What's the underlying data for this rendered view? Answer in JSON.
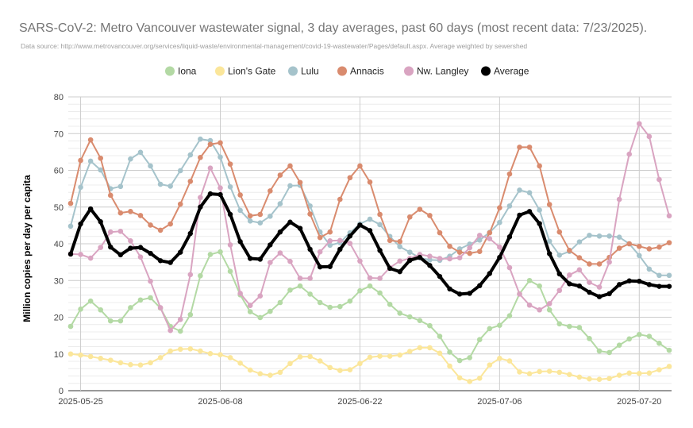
{
  "chart_data": {
    "type": "line",
    "title": "SARS-CoV-2: Metro Vancouver wastewater signal, 3 day averages, past 60 days (most recent data: 7/23/2025).",
    "subtitle": "Data source: http://www.metrovancouver.org/services/liquid-waste/environmental-management/covid-19-wastewater/Pages/default.aspx. Average weighted by sewershed",
    "ylabel": "Million copies per day per capita",
    "xlabel": "",
    "ylim": [
      0,
      80
    ],
    "yticks": [
      "0",
      "10",
      "20",
      "30",
      "40",
      "50",
      "60",
      "70",
      "80"
    ],
    "xticks": [
      {
        "index": 1,
        "label": "2025-05-25"
      },
      {
        "index": 15,
        "label": "2025-06-08"
      },
      {
        "index": 29,
        "label": "2025-06-22"
      },
      {
        "index": 43,
        "label": "2025-07-06"
      },
      {
        "index": 57,
        "label": "2025-07-20"
      }
    ],
    "x_start": "2025-05-24",
    "x_end": "2025-07-23",
    "grid": true,
    "legend_position": "top",
    "series": [
      {
        "name": "Iona",
        "color": "#b3d9a4",
        "bold": false,
        "values": [
          17.5,
          22.2,
          24.4,
          22.0,
          19.0,
          19.0,
          22.6,
          24.7,
          25.3,
          22.5,
          17.5,
          16.2,
          20.7,
          31.3,
          37.1,
          37.8,
          32.5,
          26.1,
          21.5,
          19.9,
          21.6,
          24.0,
          27.4,
          28.5,
          26.3,
          24.0,
          22.7,
          22.9,
          24.4,
          27.2,
          28.5,
          26.6,
          23.5,
          21.1,
          20.1,
          19.1,
          17.7,
          14.8,
          10.5,
          8.2,
          9.0,
          13.9,
          16.9,
          17.8,
          20.4,
          26.4,
          30.0,
          28.5,
          22.0,
          18.2,
          17.5,
          17.2,
          14.2,
          10.8,
          10.4,
          12.4,
          14.1,
          15.3,
          14.8,
          12.9,
          11.0
        ]
      },
      {
        "name": "Lion's Gate",
        "color": "#fbe69a",
        "bold": false,
        "values": [
          10.0,
          9.7,
          9.3,
          8.8,
          8.3,
          7.6,
          7.1,
          7.0,
          7.6,
          9.0,
          10.8,
          11.3,
          11.4,
          10.8,
          10.1,
          9.8,
          9.0,
          7.5,
          5.6,
          4.6,
          4.2,
          5.0,
          7.4,
          9.2,
          9.3,
          8.1,
          6.3,
          5.5,
          5.7,
          7.4,
          9.1,
          9.4,
          9.4,
          9.7,
          10.7,
          11.7,
          11.7,
          10.2,
          6.7,
          3.5,
          2.5,
          3.4,
          7.0,
          8.8,
          8.1,
          5.1,
          4.6,
          5.2,
          5.3,
          5.0,
          4.4,
          3.7,
          3.2,
          3.1,
          3.3,
          4.2,
          4.8,
          4.7,
          4.8,
          5.7,
          6.6
        ]
      },
      {
        "name": "Lulu",
        "color": "#a5c3cb",
        "bold": false,
        "values": [
          44.8,
          55.4,
          62.5,
          60.1,
          55.0,
          55.6,
          63.1,
          64.9,
          61.2,
          56.2,
          55.7,
          59.9,
          64.2,
          68.5,
          68.1,
          63.6,
          55.5,
          49.1,
          46.2,
          45.7,
          47.5,
          50.9,
          55.8,
          55.9,
          50.3,
          43.2,
          39.6,
          40.3,
          43.0,
          45.4,
          46.7,
          45.2,
          42.0,
          39.2,
          37.7,
          36.2,
          35.6,
          35.5,
          36.6,
          38.6,
          39.9,
          41.0,
          43.1,
          45.8,
          50.3,
          54.6,
          53.9,
          49.2,
          40.7,
          36.9,
          37.9,
          40.5,
          42.3,
          42.1,
          42.1,
          41.8,
          40.0,
          36.8,
          33.1,
          31.4,
          31.4
        ]
      },
      {
        "name": "Annacis",
        "color": "#d98b6e",
        "bold": false,
        "values": [
          51.0,
          62.7,
          68.3,
          63.3,
          53.2,
          48.4,
          48.8,
          47.7,
          45.1,
          43.7,
          45.4,
          50.8,
          57.0,
          63.5,
          67.1,
          67.5,
          61.7,
          53.3,
          47.6,
          48.0,
          54.4,
          58.7,
          61.2,
          56.7,
          48.1,
          41.7,
          43.2,
          52.1,
          58.0,
          61.2,
          56.8,
          48.0,
          40.9,
          40.6,
          47.3,
          49.4,
          47.7,
          43.0,
          39.3,
          37.7,
          37.4,
          37.9,
          43.0,
          49.8,
          59.0,
          66.3,
          66.3,
          61.2,
          50.7,
          43.2,
          38.2,
          36.2,
          34.5,
          34.5,
          36.3,
          38.8,
          40.0,
          39.3,
          38.6,
          39.1,
          40.3
        ]
      },
      {
        "name": "Nw. Langley",
        "color": "#d9a4c1",
        "bold": false,
        "values": [
          37.2,
          37.1,
          36.1,
          39.0,
          43.2,
          43.4,
          40.8,
          36.4,
          29.8,
          22.6,
          16.4,
          19.4,
          31.6,
          52.6,
          60.6,
          55.2,
          39.7,
          26.5,
          23.2,
          25.8,
          34.9,
          37.5,
          35.2,
          30.6,
          30.6,
          37.8,
          40.8,
          40.9,
          40.1,
          35.3,
          30.7,
          30.6,
          33.5,
          35.3,
          36.0,
          37.1,
          36.6,
          36.0,
          35.9,
          36.2,
          38.9,
          42.3,
          41.4,
          39.1,
          33.5,
          26.3,
          23.3,
          22.0,
          23.7,
          27.3,
          31.5,
          32.9,
          29.5,
          28.2,
          35.0,
          52.1,
          64.4,
          72.7,
          69.2,
          57.5,
          47.6
        ]
      },
      {
        "name": "Average",
        "color": "#000000",
        "bold": true,
        "values": [
          37.2,
          45.4,
          49.5,
          46.0,
          39.1,
          37.0,
          38.8,
          39.0,
          37.4,
          35.4,
          34.9,
          37.7,
          42.8,
          50.0,
          53.6,
          53.4,
          48.0,
          40.6,
          36.0,
          35.8,
          39.7,
          43.2,
          45.9,
          44.2,
          38.5,
          33.7,
          33.8,
          38.5,
          42.1,
          45.1,
          43.6,
          38.2,
          33.3,
          32.4,
          35.5,
          36.3,
          34.1,
          31.1,
          27.7,
          26.3,
          26.5,
          28.6,
          31.9,
          36.3,
          41.9,
          47.8,
          48.8,
          45.5,
          37.3,
          31.8,
          29.1,
          28.5,
          26.8,
          25.6,
          26.4,
          28.9,
          29.9,
          29.8,
          28.9,
          28.4,
          28.4
        ]
      }
    ]
  }
}
